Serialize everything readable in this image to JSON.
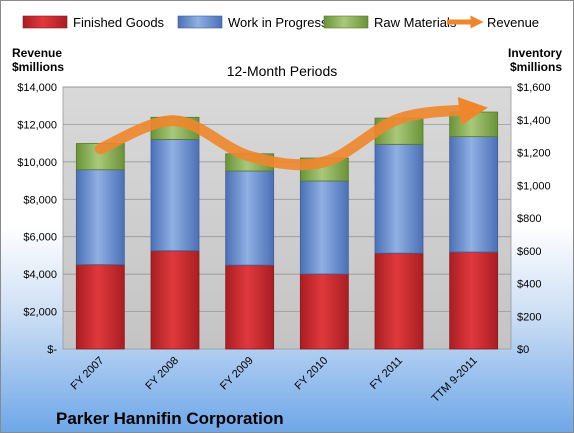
{
  "chart_data": {
    "type": "bar",
    "stacked": true,
    "title": "12-Month Periods",
    "company": "Parker Hannifin Corporation",
    "categories": [
      "FY 2007",
      "FY 2008",
      "FY 2009",
      "FY 2010",
      "FY 2011",
      "TTM 9-2011"
    ],
    "series": [
      {
        "name": "Finished Goods",
        "axis": "right",
        "color": "#c0272d",
        "values": [
          515,
          600,
          512,
          458,
          585,
          592
        ]
      },
      {
        "name": "Work in Progress",
        "axis": "right",
        "color": "#5b82c8",
        "values": [
          580,
          680,
          575,
          568,
          665,
          705
        ]
      },
      {
        "name": "Raw Materials",
        "axis": "right",
        "color": "#7ea64a",
        "values": [
          160,
          135,
          105,
          140,
          160,
          150
        ]
      }
    ],
    "line_series": {
      "name": "Revenue",
      "axis": "left",
      "color": "#f0862c",
      "values": [
        10700,
        12200,
        10300,
        10000,
        12300,
        12800
      ]
    },
    "left_axis": {
      "label_line1": "Revenue",
      "label_line2": "$millions",
      "range": [
        0,
        14000
      ],
      "ticks": [
        "$-",
        "$2,000",
        "$4,000",
        "$6,000",
        "$8,000",
        "$10,000",
        "$12,000",
        "$14,000"
      ]
    },
    "right_axis": {
      "label_line1": "Inventory",
      "label_line2": "$millions",
      "range": [
        0,
        1600
      ],
      "ticks": [
        "$0",
        "$200",
        "$400",
        "$600",
        "$800",
        "$1,000",
        "$1,200",
        "$1,400",
        "$1,600"
      ]
    },
    "grid": true,
    "legend_position": "top"
  }
}
